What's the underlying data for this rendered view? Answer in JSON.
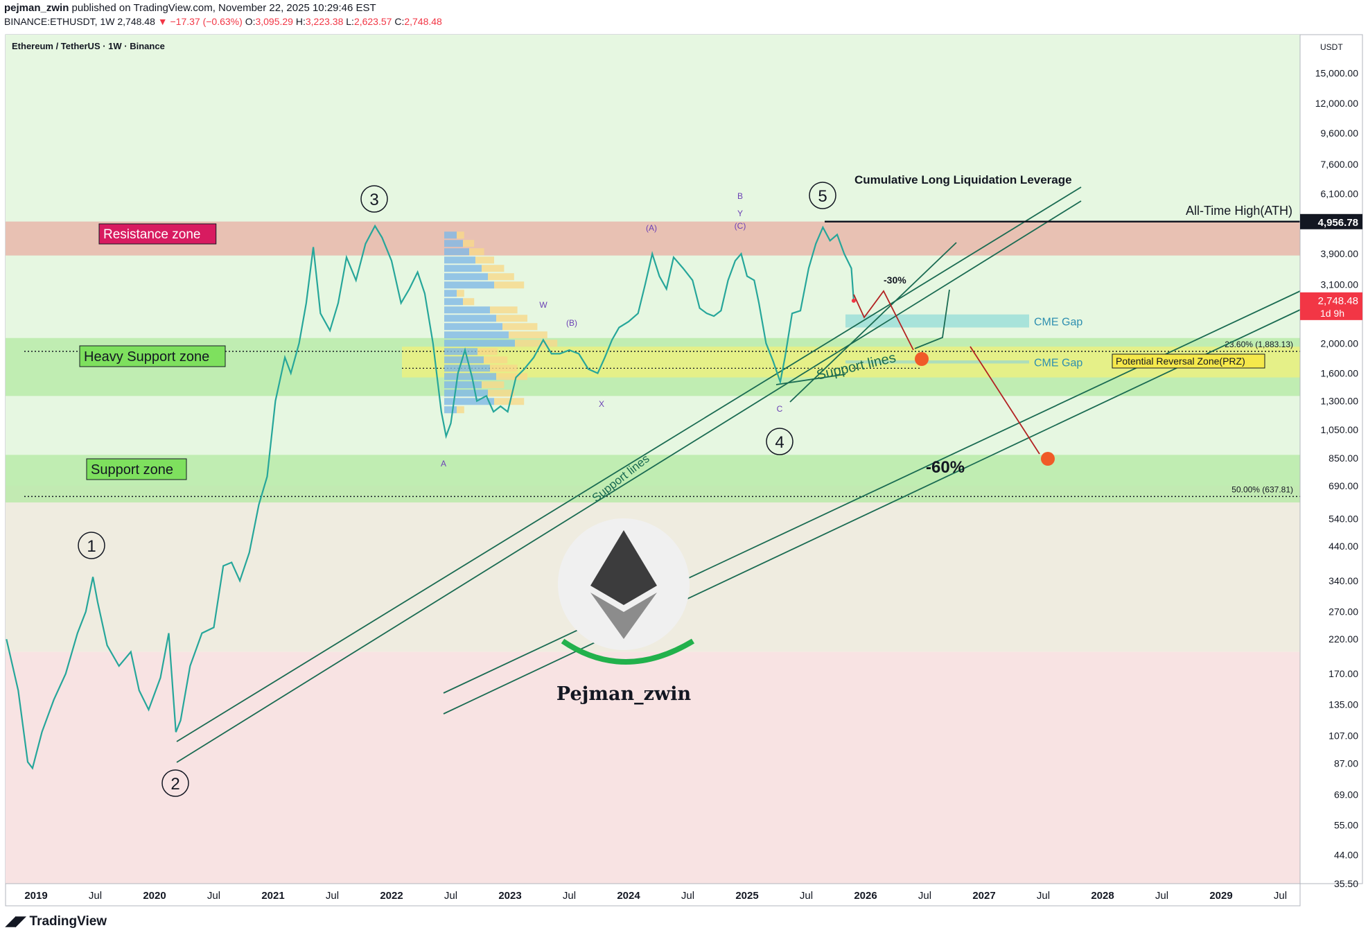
{
  "header": {
    "line1_user": "pejman_zwin",
    "line1_rest": " published on TradingView.com, November 22, 2025 10:29:46 EST",
    "symbol": "BINANCE:ETHUSDT, 1W",
    "last": "2,748.48",
    "change": "▼ −17.37 (−0.63%)",
    "o_label": "O:",
    "o_val": "3,095.29",
    "h_label": "H:",
    "h_val": "3,223.38",
    "l_label": "L:",
    "l_val": "2,623.57",
    "c_label": "C:",
    "c_val": "2,748.48"
  },
  "footer": {
    "brand": "TradingView"
  },
  "chart_data": {
    "type": "line",
    "title": "Ethereum / TetherUS · 1W · Binance",
    "yscale": "log",
    "ylim": [
      35.5,
      20000
    ],
    "currency": "USDT",
    "price_axis_labels": [
      "15,000.00",
      "12,000.00",
      "9,600.00",
      "7,600.00",
      "6,100.00",
      "3,900.00",
      "3,100.00",
      "2,000.00",
      "1,600.00",
      "1,300.00",
      "1,050.00",
      "850.00",
      "690.00",
      "540.00",
      "440.00",
      "340.00",
      "270.00",
      "220.00",
      "170.00",
      "135.00",
      "107.00",
      "87.00",
      "69.00",
      "55.00",
      "44.00",
      "35.50"
    ],
    "time_axis_labels": [
      {
        "t": 2019.0,
        "text": "2019",
        "bold": true
      },
      {
        "t": 2019.5,
        "text": "Jul",
        "bold": false
      },
      {
        "t": 2020.0,
        "text": "2020",
        "bold": true
      },
      {
        "t": 2020.5,
        "text": "Jul",
        "bold": false
      },
      {
        "t": 2021.0,
        "text": "2021",
        "bold": true
      },
      {
        "t": 2021.5,
        "text": "Jul",
        "bold": false
      },
      {
        "t": 2022.0,
        "text": "2022",
        "bold": true
      },
      {
        "t": 2022.5,
        "text": "Jul",
        "bold": false
      },
      {
        "t": 2023.0,
        "text": "2023",
        "bold": true
      },
      {
        "t": 2023.5,
        "text": "Jul",
        "bold": false
      },
      {
        "t": 2024.0,
        "text": "2024",
        "bold": true
      },
      {
        "t": 2024.5,
        "text": "Jul",
        "bold": false
      },
      {
        "t": 2025.0,
        "text": "2025",
        "bold": true
      },
      {
        "t": 2025.5,
        "text": "Jul",
        "bold": false
      },
      {
        "t": 2026.0,
        "text": "2026",
        "bold": true
      },
      {
        "t": 2026.5,
        "text": "Jul",
        "bold": false
      },
      {
        "t": 2027.0,
        "text": "2027",
        "bold": true
      },
      {
        "t": 2027.5,
        "text": "Jul",
        "bold": false
      },
      {
        "t": 2028.0,
        "text": "2028",
        "bold": true
      },
      {
        "t": 2028.5,
        "text": "Jul",
        "bold": false
      },
      {
        "t": 2029.0,
        "text": "2029",
        "bold": true
      },
      {
        "t": 2029.5,
        "text": "Jul",
        "bold": false
      }
    ],
    "price_path": [
      [
        2018.75,
        220
      ],
      [
        2018.85,
        150
      ],
      [
        2018.93,
        88
      ],
      [
        2018.97,
        84
      ],
      [
        2019.05,
        110
      ],
      [
        2019.15,
        140
      ],
      [
        2019.25,
        170
      ],
      [
        2019.35,
        230
      ],
      [
        2019.42,
        270
      ],
      [
        2019.48,
        350
      ],
      [
        2019.52,
        290
      ],
      [
        2019.6,
        210
      ],
      [
        2019.7,
        180
      ],
      [
        2019.8,
        200
      ],
      [
        2019.87,
        150
      ],
      [
        2019.95,
        130
      ],
      [
        2020.05,
        165
      ],
      [
        2020.12,
        230
      ],
      [
        2020.18,
        110
      ],
      [
        2020.22,
        120
      ],
      [
        2020.3,
        180
      ],
      [
        2020.4,
        230
      ],
      [
        2020.5,
        240
      ],
      [
        2020.58,
        380
      ],
      [
        2020.65,
        390
      ],
      [
        2020.72,
        340
      ],
      [
        2020.8,
        420
      ],
      [
        2020.88,
        600
      ],
      [
        2020.95,
        740
      ],
      [
        2021.02,
        1300
      ],
      [
        2021.1,
        1800
      ],
      [
        2021.15,
        1600
      ],
      [
        2021.22,
        2000
      ],
      [
        2021.28,
        2700
      ],
      [
        2021.34,
        4100
      ],
      [
        2021.4,
        2500
      ],
      [
        2021.48,
        2200
      ],
      [
        2021.55,
        2700
      ],
      [
        2021.62,
        3800
      ],
      [
        2021.7,
        3200
      ],
      [
        2021.78,
        4200
      ],
      [
        2021.86,
        4800
      ],
      [
        2021.92,
        4400
      ],
      [
        2022.0,
        3700
      ],
      [
        2022.08,
        2700
      ],
      [
        2022.15,
        3000
      ],
      [
        2022.22,
        3400
      ],
      [
        2022.28,
        2900
      ],
      [
        2022.35,
        2000
      ],
      [
        2022.42,
        1200
      ],
      [
        2022.46,
        1000
      ],
      [
        2022.5,
        1100
      ],
      [
        2022.56,
        1600
      ],
      [
        2022.62,
        1900
      ],
      [
        2022.68,
        1550
      ],
      [
        2022.72,
        1300
      ],
      [
        2022.8,
        1350
      ],
      [
        2022.86,
        1200
      ],
      [
        2022.92,
        1250
      ],
      [
        2022.98,
        1200
      ],
      [
        2023.05,
        1550
      ],
      [
        2023.12,
        1650
      ],
      [
        2023.2,
        1800
      ],
      [
        2023.28,
        2050
      ],
      [
        2023.35,
        1850
      ],
      [
        2023.42,
        1850
      ],
      [
        2023.5,
        1900
      ],
      [
        2023.58,
        1850
      ],
      [
        2023.66,
        1650
      ],
      [
        2023.74,
        1600
      ],
      [
        2023.8,
        1800
      ],
      [
        2023.86,
        2050
      ],
      [
        2023.92,
        2250
      ],
      [
        2024.0,
        2350
      ],
      [
        2024.08,
        2500
      ],
      [
        2024.14,
        3100
      ],
      [
        2024.2,
        3900
      ],
      [
        2024.26,
        3300
      ],
      [
        2024.32,
        3000
      ],
      [
        2024.38,
        3800
      ],
      [
        2024.46,
        3500
      ],
      [
        2024.54,
        3200
      ],
      [
        2024.6,
        2600
      ],
      [
        2024.66,
        2500
      ],
      [
        2024.72,
        2450
      ],
      [
        2024.78,
        2550
      ],
      [
        2024.84,
        3200
      ],
      [
        2024.9,
        3700
      ],
      [
        2024.95,
        3900
      ],
      [
        2025.0,
        3300
      ],
      [
        2025.06,
        3200
      ],
      [
        2025.1,
        2700
      ],
      [
        2025.16,
        2000
      ],
      [
        2025.22,
        1750
      ],
      [
        2025.28,
        1500
      ],
      [
        2025.32,
        1800
      ],
      [
        2025.38,
        2500
      ],
      [
        2025.45,
        2550
      ],
      [
        2025.52,
        3500
      ],
      [
        2025.58,
        4200
      ],
      [
        2025.64,
        4750
      ],
      [
        2025.7,
        4300
      ],
      [
        2025.76,
        4500
      ],
      [
        2025.82,
        3900
      ],
      [
        2025.88,
        3500
      ],
      [
        2025.9,
        2748.48
      ]
    ],
    "zones": [
      {
        "name": "Resistance zone",
        "low": 3850,
        "high": 4960
      },
      {
        "name": "Heavy Support zone",
        "low": 1350,
        "high": 2080
      },
      {
        "name": "Support zone",
        "low": 610,
        "high": 870
      },
      {
        "name": "Potential Reversal Zone(PRZ)",
        "low": 1550,
        "high": 1950
      }
    ],
    "fib_levels": [
      {
        "label": "23.60% (1,883.13)",
        "value": 1883.13
      },
      {
        "label": "50.00% (637.81)",
        "value": 637.81
      }
    ],
    "ath": {
      "label": "All-Time High(ATH)",
      "value": 4956.78,
      "tag": "4,956.78"
    },
    "last_price": {
      "tag": "2,748.48",
      "timer": "1d 9h",
      "value": 2748.48
    },
    "wave_labels": [
      "1",
      "2",
      "3",
      "4",
      "5"
    ],
    "sub_labels": [
      "A",
      "B",
      "C",
      "(A)",
      "(B)",
      "(C)",
      "W",
      "X",
      "Y"
    ],
    "annotations": {
      "cumulative": "Cumulative Long Liquidation Leverage",
      "support_lines": "Support lines",
      "cme_gap": "CME Gap",
      "minus30": "-30%",
      "minus60": "-60%",
      "brand": "Pejman_zwin"
    }
  }
}
